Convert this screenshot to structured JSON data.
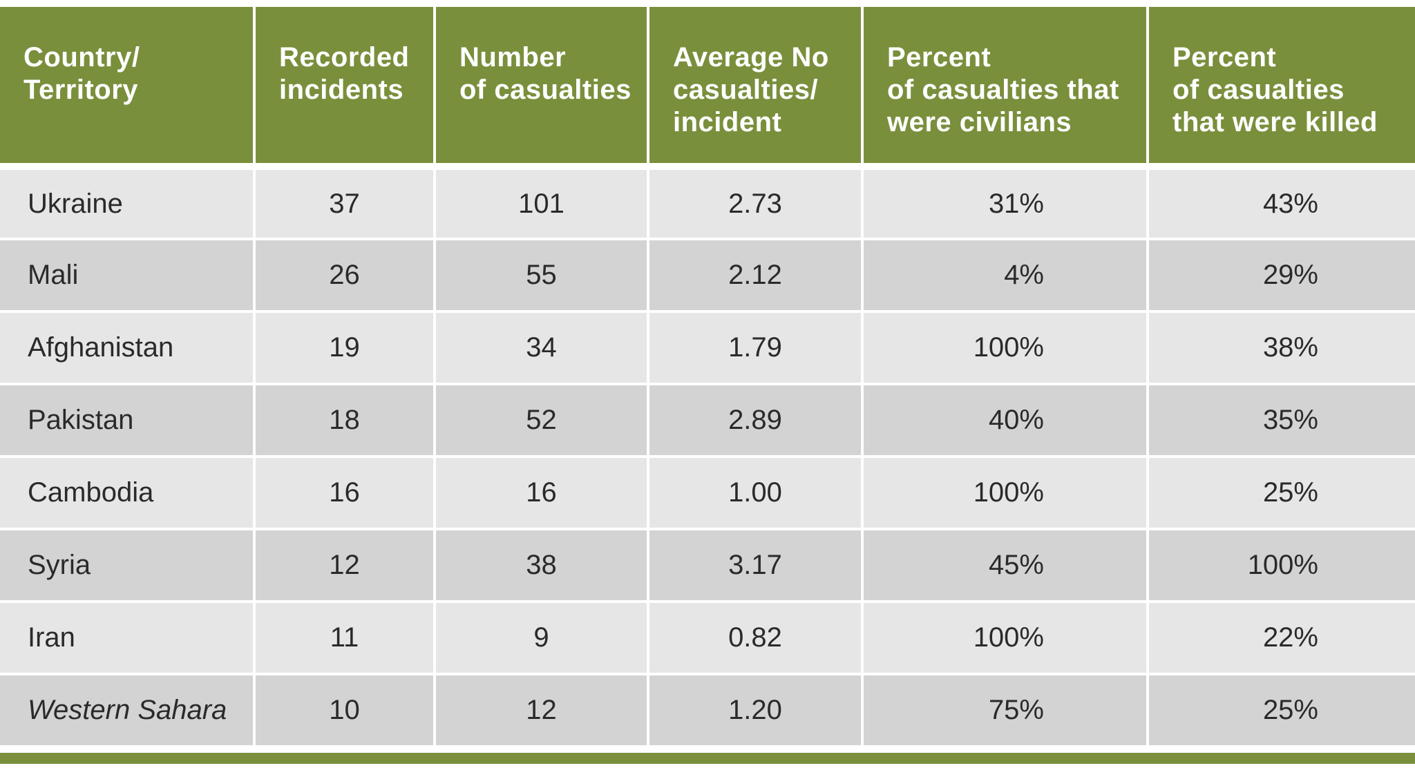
{
  "table": {
    "columns": [
      "Country/\nTerritory",
      "Recorded\nincidents",
      "Number\nof casualties",
      "Average No\ncasualties/\nincident",
      "Percent\nof casualties that\nwere civilians",
      "Percent\nof casualties\nthat were killed"
    ],
    "rows": [
      {
        "country": "Ukraine",
        "incidents": "37",
        "casualties": "101",
        "average": "2.73",
        "civilians": "31%",
        "killed": "43%",
        "italic": false
      },
      {
        "country": "Mali",
        "incidents": "26",
        "casualties": "55",
        "average": "2.12",
        "civilians": "4%",
        "killed": "29%",
        "italic": false
      },
      {
        "country": "Afghanistan",
        "incidents": "19",
        "casualties": "34",
        "average": "1.79",
        "civilians": "100%",
        "killed": "38%",
        "italic": false
      },
      {
        "country": "Pakistan",
        "incidents": "18",
        "casualties": "52",
        "average": "2.89",
        "civilians": "40%",
        "killed": "35%",
        "italic": false
      },
      {
        "country": "Cambodia",
        "incidents": "16",
        "casualties": "16",
        "average": "1.00",
        "civilians": "100%",
        "killed": "25%",
        "italic": false
      },
      {
        "country": "Syria",
        "incidents": "12",
        "casualties": "38",
        "average": "3.17",
        "civilians": "45%",
        "killed": "100%",
        "italic": false
      },
      {
        "country": "Iran",
        "incidents": "11",
        "casualties": "9",
        "average": "0.82",
        "civilians": "100%",
        "killed": "22%",
        "italic": false
      },
      {
        "country": "Western Sahara",
        "incidents": "10",
        "casualties": "12",
        "average": "1.20",
        "civilians": "75%",
        "killed": "25%",
        "italic": true
      }
    ]
  },
  "colors": {
    "header_green": "#7a8f3c",
    "row_light": "#e6e6e6",
    "row_dark": "#d3d3d3"
  }
}
